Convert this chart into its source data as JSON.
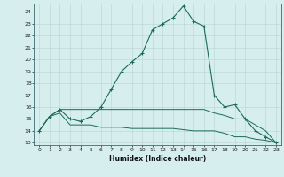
{
  "xlabel": "Humidex (Indice chaleur)",
  "bg_color": "#d7eeee",
  "grid_color": "#b8d4d4",
  "line_color": "#1a6b5a",
  "xlim": [
    0,
    23
  ],
  "ylim": [
    13,
    24
  ],
  "yticks": [
    13,
    14,
    15,
    16,
    17,
    18,
    19,
    20,
    21,
    22,
    23,
    24
  ],
  "xticks": [
    0,
    1,
    2,
    3,
    4,
    5,
    6,
    7,
    8,
    9,
    10,
    11,
    12,
    13,
    14,
    15,
    16,
    17,
    18,
    19,
    20,
    21,
    22,
    23
  ],
  "series_main": {
    "x": [
      0,
      1,
      2,
      3,
      4,
      5,
      6,
      7,
      8,
      9,
      10,
      11,
      12,
      13,
      14,
      15,
      16,
      17,
      18,
      19,
      20,
      21,
      22,
      23
    ],
    "y": [
      14,
      15.2,
      15.8,
      15.0,
      14.8,
      15.2,
      16.0,
      17.5,
      19.0,
      19.8,
      20.5,
      22.5,
      23.0,
      23.5,
      24.5,
      23.2,
      22.8,
      17.0,
      16.0,
      16.2,
      15.0,
      14.0,
      13.5,
      13.0
    ]
  },
  "series_upper_flat": {
    "x": [
      0,
      1,
      2,
      3,
      4,
      5,
      6,
      7,
      8,
      9,
      10,
      11,
      12,
      13,
      14,
      15,
      16,
      17,
      18,
      19,
      20,
      21,
      22,
      23
    ],
    "y": [
      14.0,
      15.2,
      15.8,
      15.8,
      15.8,
      15.8,
      15.8,
      15.8,
      15.8,
      15.8,
      15.8,
      15.8,
      15.8,
      15.8,
      15.8,
      15.8,
      15.8,
      15.5,
      15.3,
      15.0,
      15.0,
      14.5,
      14.0,
      13.0
    ]
  },
  "series_lower_flat": {
    "x": [
      0,
      1,
      2,
      3,
      4,
      5,
      6,
      7,
      8,
      9,
      10,
      11,
      12,
      13,
      14,
      15,
      16,
      17,
      18,
      19,
      20,
      21,
      22,
      23
    ],
    "y": [
      14.0,
      15.2,
      15.5,
      14.5,
      14.5,
      14.5,
      14.3,
      14.3,
      14.3,
      14.2,
      14.2,
      14.2,
      14.2,
      14.2,
      14.1,
      14.0,
      14.0,
      14.0,
      13.8,
      13.5,
      13.5,
      13.3,
      13.2,
      13.0
    ]
  }
}
